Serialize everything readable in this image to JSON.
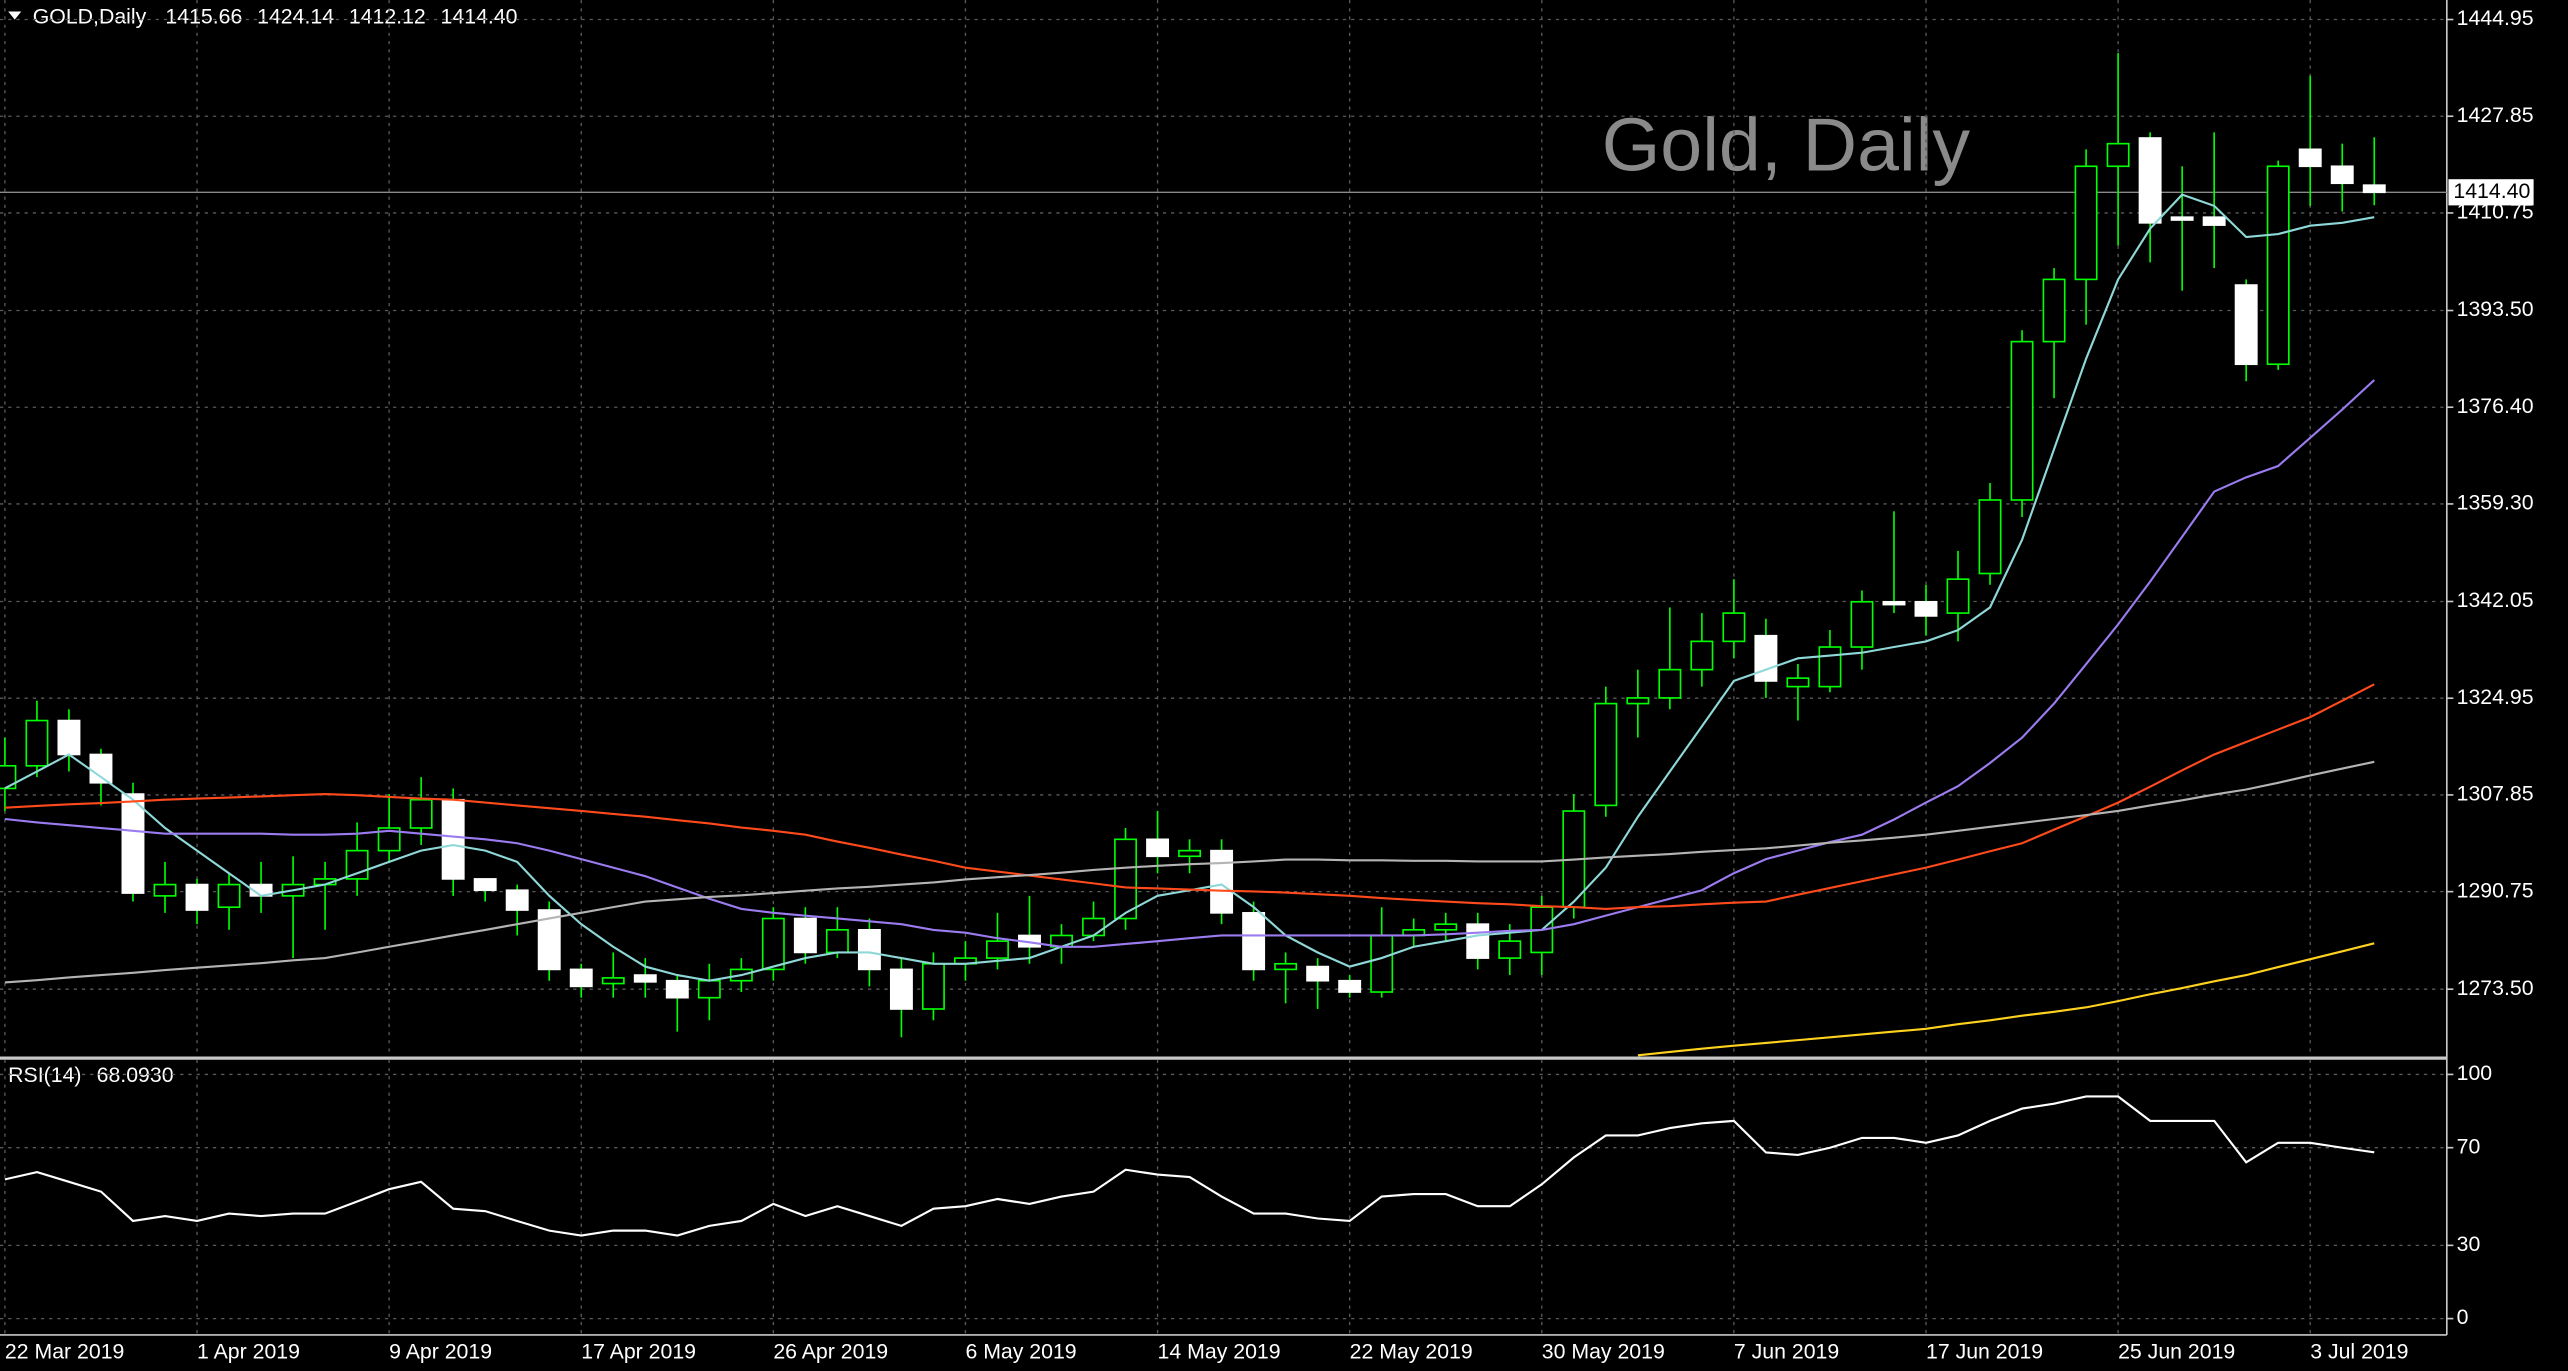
{
  "chart_data": [
    {
      "type": "candlestick",
      "title": "Gold, Daily",
      "symbol": "GOLD,Daily",
      "ohlc_labels": [
        "1415.66",
        "1424.14",
        "1412.12",
        "1414.40"
      ],
      "categories": [
        "22 Mar 2019",
        null,
        null,
        null,
        null,
        null,
        "1 Apr 2019",
        null,
        null,
        null,
        null,
        null,
        "9 Apr 2019",
        null,
        null,
        null,
        null,
        null,
        "17 Apr 2019",
        null,
        null,
        null,
        null,
        null,
        "26 Apr 2019",
        null,
        null,
        null,
        null,
        null,
        "6 May 2019",
        null,
        null,
        null,
        null,
        null,
        "14 May 2019",
        null,
        null,
        null,
        null,
        null,
        "22 May 2019",
        null,
        null,
        null,
        null,
        null,
        "30 May 2019",
        null,
        null,
        null,
        null,
        null,
        "7 Jun 2019",
        null,
        null,
        null,
        null,
        null,
        "17 Jun 2019",
        null,
        null,
        null,
        null,
        null,
        "25 Jun 2019",
        null,
        null,
        null,
        null,
        null,
        "3 Jul 2019",
        null,
        null
      ],
      "open": [
        1309,
        1313,
        1321,
        1315,
        1308,
        1290,
        1292,
        1288,
        1292,
        1290,
        1292,
        1293,
        1298,
        1302,
        1307,
        1293,
        1291,
        1287.5,
        1277,
        1274.5,
        1276,
        1275,
        1272,
        1275,
        1277,
        1286,
        1280,
        1284,
        1277,
        1270,
        1278,
        1279,
        1283,
        1281,
        1283,
        1286,
        1300,
        1297,
        1298,
        1287,
        1277,
        1277.5,
        1275,
        1273,
        1283,
        1284,
        1285,
        1279,
        1280,
        1288,
        1306,
        1324,
        1325,
        1330,
        1335,
        1336,
        1327,
        1327,
        1334,
        1342,
        1342,
        1340,
        1347,
        1360,
        1388,
        1399,
        1419,
        1424,
        1410,
        1410,
        1398,
        1384,
        1422,
        1419,
        1415.66
      ],
      "high": [
        1318,
        1324.5,
        1323,
        1316,
        1310,
        1296,
        1293,
        1294,
        1296,
        1297,
        1296,
        1303,
        1308,
        1311,
        1309,
        1293,
        1292,
        1289,
        1278,
        1280,
        1279,
        1276,
        1278,
        1279,
        1288,
        1288,
        1288,
        1286,
        1279,
        1280,
        1282,
        1287,
        1290,
        1285,
        1289,
        1302,
        1305,
        1300,
        1300,
        1289,
        1280,
        1279,
        1276,
        1288,
        1286,
        1287,
        1287,
        1285,
        1290,
        1308,
        1327,
        1330,
        1341,
        1340,
        1346,
        1339,
        1331,
        1337,
        1344,
        1358,
        1345,
        1351,
        1363,
        1390,
        1401,
        1422,
        1439,
        1425,
        1419,
        1425,
        1399,
        1420,
        1435,
        1423,
        1424.14
      ],
      "low": [
        1305,
        1311,
        1312,
        1306,
        1289,
        1287,
        1285,
        1284,
        1287,
        1279,
        1284,
        1290,
        1296,
        1299,
        1290,
        1289,
        1283,
        1275,
        1272,
        1272,
        1272,
        1266,
        1268,
        1273,
        1275,
        1278,
        1279,
        1274,
        1265,
        1268,
        1275,
        1277,
        1278,
        1278,
        1282,
        1284,
        1294,
        1294,
        1285,
        1275,
        1271,
        1270,
        1272,
        1272,
        1281,
        1282,
        1277,
        1276,
        1276,
        1286,
        1304,
        1318,
        1323,
        1327,
        1332,
        1325,
        1321,
        1326,
        1330,
        1340,
        1336,
        1335,
        1345,
        1357,
        1378,
        1391,
        1405,
        1402,
        1397,
        1401,
        1381,
        1383,
        1412,
        1411,
        1412.12
      ],
      "close": [
        1313,
        1321,
        1315,
        1310,
        1290.5,
        1292,
        1287.5,
        1292,
        1290,
        1292,
        1293,
        1298,
        1302,
        1307,
        1293,
        1291,
        1287.5,
        1277,
        1274,
        1275.5,
        1274.8,
        1272,
        1275,
        1277,
        1286,
        1280,
        1284,
        1277,
        1270,
        1278,
        1279,
        1282,
        1281,
        1283,
        1286,
        1300,
        1297,
        1298,
        1287,
        1277,
        1278,
        1275,
        1273,
        1283,
        1284,
        1285,
        1279,
        1282,
        1288,
        1305,
        1324,
        1325,
        1330,
        1335,
        1340,
        1328,
        1328.5,
        1334,
        1342,
        1341.5,
        1339.5,
        1346,
        1360,
        1388,
        1399,
        1419,
        1423,
        1409,
        1409.5,
        1408.6,
        1384,
        1419,
        1419,
        1416,
        1414.4
      ],
      "bull_color": "#00ff00",
      "bear_color": "#ffffff",
      "series": [
        {
          "color": "#8fd8d8",
          "values": [
            1309,
            1312,
            1315,
            1311,
            1307,
            1302,
            1298,
            1294,
            1290,
            1291,
            1292,
            1294,
            1296,
            1298,
            1299,
            1298,
            1296,
            1290,
            1285,
            1281,
            1277.5,
            1276,
            1275,
            1276,
            1277.5,
            1279,
            1280,
            1280,
            1279,
            1278,
            1278,
            1278.5,
            1279,
            1281,
            1283,
            1287,
            1290,
            1291,
            1292,
            1288,
            1283,
            1280,
            1277.5,
            1279,
            1281,
            1282,
            1283,
            1283.5,
            1284,
            1289,
            1295,
            1304,
            1312,
            1320,
            1328,
            1330,
            1332,
            1332.5,
            1333,
            1334,
            1335,
            1337,
            1341,
            1353,
            1369,
            1385,
            1399,
            1408,
            1414,
            1412,
            1406.5,
            1407,
            1408.5,
            1409,
            1410
          ]
        },
        {
          "color": "#9b7cf0",
          "values": [
            1303.6,
            1303,
            1302.5,
            1302,
            1301.5,
            1301,
            1301,
            1301,
            1301,
            1300.8,
            1300.8,
            1301,
            1301.5,
            1301,
            1300.5,
            1300,
            1299.3,
            1298,
            1296.5,
            1295,
            1293.5,
            1291.5,
            1289.5,
            1287.7,
            1287,
            1286.5,
            1286,
            1285.5,
            1285,
            1284,
            1283.5,
            1282.5,
            1281.8,
            1281,
            1281,
            1281.5,
            1282,
            1282.5,
            1283,
            1283,
            1283,
            1283,
            1283,
            1283,
            1283,
            1283.2,
            1283.5,
            1283.8,
            1284,
            1285,
            1286.5,
            1288,
            1289.5,
            1291,
            1294,
            1296.5,
            1298,
            1299.5,
            1300.8,
            1303.5,
            1306.5,
            1309.4,
            1313.5,
            1318,
            1324,
            1331,
            1338,
            1345.6,
            1353.5,
            1361.5,
            1364,
            1366,
            1371,
            1376,
            1381.2
          ]
        },
        {
          "color": "#ff4a1c",
          "values": [
            1305.6,
            1305.9,
            1306.2,
            1306.4,
            1306.7,
            1307,
            1307.2,
            1307.4,
            1307.6,
            1307.8,
            1308,
            1307.8,
            1307.5,
            1307.2,
            1307,
            1306.5,
            1306,
            1305.5,
            1305,
            1304.5,
            1304,
            1303.4,
            1302.8,
            1302.1,
            1301.5,
            1300.8,
            1299.6,
            1298.5,
            1297.3,
            1296.2,
            1295,
            1294.3,
            1293.6,
            1292.9,
            1292.2,
            1291.5,
            1291.3,
            1291.1,
            1290.9,
            1290.8,
            1290.6,
            1290.3,
            1290,
            1289.6,
            1289.3,
            1289,
            1288.7,
            1288.5,
            1288.2,
            1288,
            1287.7,
            1288,
            1288.2,
            1288.5,
            1288.8,
            1289,
            1290.2,
            1291.4,
            1292.6,
            1293.8,
            1295,
            1296.4,
            1297.9,
            1299.3,
            1301.7,
            1304.1,
            1306.5,
            1309.3,
            1312.2,
            1315,
            1317.2,
            1319.4,
            1321.6,
            1324.5,
            1327.4
          ]
        },
        {
          "color": "#b4b4b4",
          "values": [
            1274.7,
            1275.1,
            1275.6,
            1276,
            1276.4,
            1276.9,
            1277.3,
            1277.7,
            1278.1,
            1278.6,
            1279,
            1280,
            1281,
            1282,
            1283,
            1284,
            1285,
            1286,
            1287,
            1288,
            1289,
            1289.4,
            1289.8,
            1290.1,
            1290.5,
            1290.9,
            1291.3,
            1291.6,
            1292,
            1292.4,
            1292.9,
            1293.3,
            1293.7,
            1294.1,
            1294.6,
            1295,
            1295.3,
            1295.6,
            1295.8,
            1296.1,
            1296.4,
            1296.4,
            1296.3,
            1296.3,
            1296.2,
            1296.2,
            1296.1,
            1296.1,
            1296.1,
            1296.4,
            1296.8,
            1297.1,
            1297.4,
            1297.8,
            1298.1,
            1298.4,
            1298.9,
            1299.4,
            1299.8,
            1300.3,
            1300.8,
            1301.5,
            1302.2,
            1302.9,
            1303.6,
            1304.3,
            1305,
            1306,
            1306.9,
            1307.9,
            1308.8,
            1310,
            1311.3,
            1312.5,
            1313.7
          ]
        },
        {
          "color": "#ffd21f",
          "values": [
            null,
            null,
            null,
            null,
            null,
            null,
            null,
            null,
            null,
            null,
            null,
            null,
            null,
            null,
            null,
            null,
            null,
            null,
            null,
            null,
            null,
            null,
            null,
            null,
            null,
            null,
            null,
            null,
            null,
            null,
            null,
            null,
            null,
            null,
            null,
            null,
            null,
            null,
            null,
            null,
            null,
            null,
            null,
            null,
            null,
            null,
            null,
            null,
            null,
            null,
            null,
            1261.8,
            1262.4,
            1263,
            1263.5,
            1264,
            1264.5,
            1265,
            1265.5,
            1266,
            1266.5,
            1267.3,
            1268,
            1268.8,
            1269.5,
            1270.3,
            1271.4,
            1272.6,
            1273.7,
            1274.9,
            1276,
            1277.4,
            1278.8,
            1280.2,
            1281.6
          ]
        }
      ],
      "ylim": [
        1261.6,
        1448.4
      ],
      "yticks": [
        {
          "value": 1273.5,
          "label": "1273.50"
        },
        1290.75,
        1307.85,
        1324.95,
        1342.05,
        {
          "value": 1359.3,
          "label": "1359.30"
        },
        {
          "value": 1376.4,
          "label": "1376.40"
        },
        {
          "value": 1393.5,
          "label": "1393.50"
        },
        1410.75,
        1427.85,
        1444.95
      ],
      "price_label": {
        "value": 1414.4,
        "label": "1414.40"
      },
      "grid": true
    },
    {
      "type": "line",
      "title": "RSI(14)",
      "last_label": {
        "value": 68.093,
        "label": "68.0930"
      },
      "color": "#ffffff",
      "values": [
        57,
        60,
        56,
        52,
        40,
        42,
        40,
        43,
        42,
        43,
        43,
        48,
        53,
        56,
        45,
        44,
        40,
        36,
        34,
        36,
        36,
        34,
        38,
        40,
        47,
        42,
        46,
        42,
        38,
        45,
        46,
        49,
        47,
        50,
        52,
        61,
        59,
        58,
        50,
        43,
        43,
        41,
        40,
        50,
        51,
        51,
        46,
        46,
        55,
        66,
        75,
        75,
        78,
        80,
        81,
        68,
        67,
        70,
        74,
        74,
        72,
        75,
        81,
        86,
        88,
        91,
        91,
        81,
        81,
        81,
        64,
        72,
        72,
        70,
        68.093
      ],
      "ylim": [
        -6.7,
        106
      ],
      "yticks": [
        0,
        30,
        70,
        100
      ],
      "grid": true
    }
  ]
}
